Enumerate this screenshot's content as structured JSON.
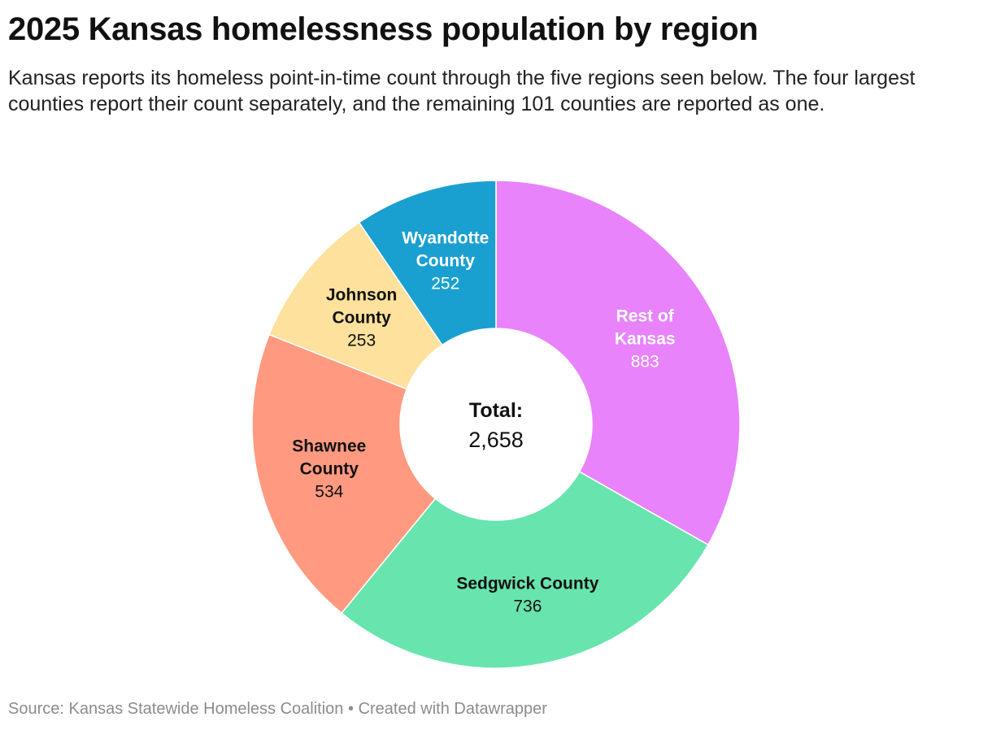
{
  "title": "2025 Kansas homelessness population by region",
  "subtitle": "Kansas reports its homeless point-in-time count through the five regions seen below. The four largest counties report their count separately, and the remaining 101 counties are reported as one.",
  "source": "Source: Kansas Statewide Homeless Coalition",
  "separator": "•",
  "created_with": "Created with Datawrapper",
  "chart_data": {
    "type": "pie",
    "variant": "donut",
    "center": {
      "label": "Total:",
      "value_text": "2,658"
    },
    "slices": [
      {
        "name": "Rest of Kansas",
        "label_lines": [
          "Rest of",
          "Kansas"
        ],
        "value": 883,
        "value_text": "883",
        "color": "#e883fc",
        "text_color": "#ffffff"
      },
      {
        "name": "Sedgwick County",
        "label_lines": [
          "Sedgwick County"
        ],
        "value": 736,
        "value_text": "736",
        "color": "#68e4ae",
        "text_color": "#111111"
      },
      {
        "name": "Shawnee County",
        "label_lines": [
          "Shawnee",
          "County"
        ],
        "value": 534,
        "value_text": "534",
        "color": "#ff9a80",
        "text_color": "#111111"
      },
      {
        "name": "Johnson County",
        "label_lines": [
          "Johnson",
          "County"
        ],
        "value": 253,
        "value_text": "253",
        "color": "#fee19c",
        "text_color": "#111111"
      },
      {
        "name": "Wyandotte County",
        "label_lines": [
          "Wyandotte",
          "County"
        ],
        "value": 252,
        "value_text": "252",
        "color": "#19a0d0",
        "text_color": "#ffffff"
      }
    ]
  }
}
